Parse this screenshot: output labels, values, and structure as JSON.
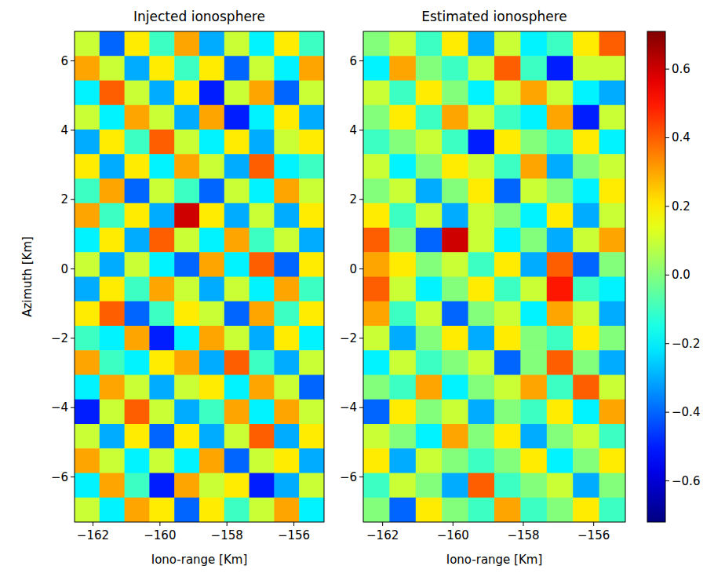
{
  "chart_data": [
    {
      "type": "heatmap",
      "title": "Injected ionosphere",
      "x_label": "Iono-range [Km]",
      "y_label": "Azimuth [Km]",
      "xlim": [
        -162.55,
        -155.1
      ],
      "ylim": [
        -7.3,
        6.85
      ],
      "xticks": [
        {
          "value": -162,
          "label": "−162"
        },
        {
          "value": -160,
          "label": "−160"
        },
        {
          "value": -158,
          "label": "−158"
        },
        {
          "value": -156,
          "label": "−156"
        }
      ],
      "yticks": [
        {
          "value": -6,
          "label": "−6"
        },
        {
          "value": -4,
          "label": "−4"
        },
        {
          "value": -2,
          "label": "−2"
        },
        0,
        2,
        4,
        6
      ],
      "cells": [
        [
          0.1,
          -0.4,
          0.2,
          -0.1,
          0.3,
          -0.3,
          0.1,
          -0.2,
          0.2,
          -0.1
        ],
        [
          0.3,
          0.1,
          -0.3,
          0.2,
          -0.1,
          0.2,
          -0.4,
          0.1,
          -0.2,
          0.3
        ],
        [
          -0.2,
          0.4,
          0.1,
          -0.3,
          0.2,
          -0.5,
          0.1,
          0.3,
          -0.4,
          0.1
        ],
        [
          0.1,
          -0.2,
          0.3,
          0.1,
          -0.3,
          0.3,
          -0.5,
          -0.2,
          0.2,
          -0.3
        ],
        [
          -0.3,
          0.2,
          -0.1,
          0.4,
          0.1,
          -0.2,
          0.2,
          -0.3,
          0.1,
          0.2
        ],
        [
          0.2,
          -0.3,
          0.2,
          -0.2,
          0.3,
          0.1,
          -0.3,
          0.4,
          -0.2,
          -0.1
        ],
        [
          -0.1,
          0.3,
          -0.4,
          0.1,
          -0.1,
          -0.4,
          0.1,
          -0.2,
          0.3,
          0.1
        ],
        [
          0.3,
          -0.1,
          0.2,
          -0.3,
          0.6,
          0.2,
          -0.3,
          0.1,
          -0.3,
          0.2
        ],
        [
          -0.2,
          0.2,
          -0.3,
          0.4,
          0.1,
          -0.2,
          0.3,
          -0.1,
          0.1,
          -0.3
        ],
        [
          0.1,
          -0.3,
          0.1,
          -0.2,
          -0.4,
          0.3,
          -0.2,
          0.4,
          -0.4,
          0.2
        ],
        [
          -0.3,
          0.2,
          -0.1,
          0.3,
          0.1,
          -0.3,
          0.1,
          -0.2,
          0.3,
          -0.1
        ],
        [
          0.2,
          0.4,
          -0.4,
          -0.1,
          0.2,
          0.1,
          -0.4,
          0.3,
          -0.1,
          0.2
        ],
        [
          -0.1,
          -0.2,
          0.3,
          -0.5,
          -0.2,
          0.3,
          0.1,
          -0.3,
          0.2,
          -0.2
        ],
        [
          0.3,
          -0.1,
          -0.2,
          0.2,
          0.3,
          -0.3,
          0.4,
          -0.1,
          -0.3,
          0.1
        ],
        [
          -0.2,
          0.3,
          0.1,
          -0.3,
          0.1,
          0.2,
          -0.2,
          0.3,
          0.1,
          -0.4
        ],
        [
          -0.5,
          0.1,
          0.4,
          0.1,
          -0.3,
          -0.1,
          0.3,
          -0.2,
          0.3,
          0.1
        ],
        [
          0.1,
          -0.3,
          0.2,
          -0.4,
          0.2,
          -0.3,
          0.1,
          0.4,
          -0.3,
          0.2
        ],
        [
          0.3,
          0.1,
          -0.2,
          0.1,
          -0.2,
          0.3,
          -0.4,
          0.1,
          0.2,
          -0.3
        ],
        [
          -0.2,
          0.3,
          -0.1,
          -0.5,
          0.3,
          0.1,
          0.2,
          -0.5,
          -0.3,
          0.1
        ],
        [
          0.1,
          -0.2,
          0.3,
          0.2,
          -0.4,
          0.2,
          -0.1,
          0.1,
          0.3,
          -0.2
        ]
      ]
    },
    {
      "type": "heatmap",
      "title": "Estimated ionosphere",
      "x_label": "Iono-range [Km]",
      "xlim": [
        -162.55,
        -155.1
      ],
      "ylim": [
        -7.3,
        6.85
      ],
      "xticks": [
        {
          "value": -162,
          "label": "−162"
        },
        {
          "value": -160,
          "label": "−160"
        },
        {
          "value": -158,
          "label": "−158"
        },
        {
          "value": -156,
          "label": "−156"
        }
      ],
      "yticks": [
        {
          "value": -6,
          "label": "−6"
        },
        {
          "value": -4,
          "label": "−4"
        },
        {
          "value": -2,
          "label": "−2"
        },
        0,
        2,
        4,
        6
      ],
      "color_range": [
        -0.72,
        0.71
      ],
      "color_ticks": [
        {
          "value": -0.6,
          "label": "−0.6"
        },
        {
          "value": -0.4,
          "label": "−0.4"
        },
        {
          "value": -0.2,
          "label": "−0.2"
        },
        {
          "value": 0,
          "label": "0.0"
        },
        0.2,
        0.4,
        0.6
      ],
      "cells": [
        [
          0.0,
          0.1,
          -0.1,
          0.2,
          -0.3,
          0.1,
          -0.2,
          -0.1,
          0.2,
          0.4
        ],
        [
          -0.2,
          0.3,
          0.0,
          -0.1,
          0.1,
          0.4,
          -0.1,
          -0.5,
          0.1,
          0.1
        ],
        [
          0.1,
          -0.1,
          0.2,
          0.0,
          -0.2,
          0.1,
          0.3,
          0.1,
          -0.2,
          -0.3
        ],
        [
          0.0,
          0.2,
          -0.1,
          0.3,
          0.1,
          -0.1,
          -0.2,
          0.3,
          -0.5,
          0.1
        ],
        [
          -0.1,
          0.0,
          0.1,
          -0.1,
          -0.5,
          0.2,
          0.0,
          -0.1,
          0.2,
          -0.2
        ],
        [
          0.1,
          -0.2,
          0.0,
          0.2,
          0.1,
          -0.1,
          0.3,
          -0.3,
          0.0,
          0.1
        ],
        [
          0.0,
          0.1,
          -0.3,
          0.0,
          0.2,
          -0.4,
          0.1,
          0.0,
          -0.2,
          0.2
        ],
        [
          0.2,
          -0.1,
          0.1,
          -0.3,
          0.1,
          0.0,
          -0.2,
          0.2,
          -0.3,
          0.1
        ],
        [
          0.4,
          0.0,
          -0.4,
          0.6,
          0.1,
          -0.2,
          0.0,
          -0.3,
          0.1,
          0.3
        ],
        [
          0.3,
          0.2,
          0.0,
          0.1,
          -0.1,
          0.2,
          -0.3,
          0.4,
          -0.4,
          0.0
        ],
        [
          0.4,
          0.1,
          -0.2,
          0.0,
          0.2,
          -0.1,
          0.1,
          0.5,
          -0.1,
          -0.2
        ],
        [
          0.3,
          -0.1,
          0.1,
          -0.4,
          0.0,
          0.1,
          -0.2,
          0.3,
          0.1,
          -0.3
        ],
        [
          0.1,
          -0.3,
          0.0,
          0.2,
          -0.3,
          0.2,
          0.0,
          -0.1,
          0.2,
          0.0
        ],
        [
          -0.2,
          0.1,
          -0.1,
          0.0,
          0.1,
          -0.4,
          0.0,
          0.4,
          0.0,
          -0.3
        ],
        [
          0.0,
          -0.1,
          0.3,
          -0.2,
          0.0,
          0.1,
          0.3,
          -0.1,
          0.4,
          0.1
        ],
        [
          -0.4,
          0.2,
          0.0,
          0.1,
          -0.3,
          0.0,
          -0.1,
          0.2,
          -0.2,
          0.3
        ],
        [
          0.1,
          0.0,
          -0.2,
          0.3,
          0.0,
          0.2,
          -0.3,
          0.0,
          0.1,
          -0.1
        ],
        [
          0.2,
          -0.3,
          0.1,
          0.0,
          -0.1,
          0.0,
          0.2,
          -0.2,
          0.0,
          0.2
        ],
        [
          -0.1,
          0.1,
          0.0,
          -0.3,
          0.4,
          -0.1,
          0.0,
          0.1,
          -0.3,
          0.0
        ],
        [
          0.0,
          -0.4,
          0.2,
          0.0,
          -0.1,
          0.3,
          -0.1,
          0.0,
          0.2,
          -0.1
        ]
      ]
    }
  ]
}
